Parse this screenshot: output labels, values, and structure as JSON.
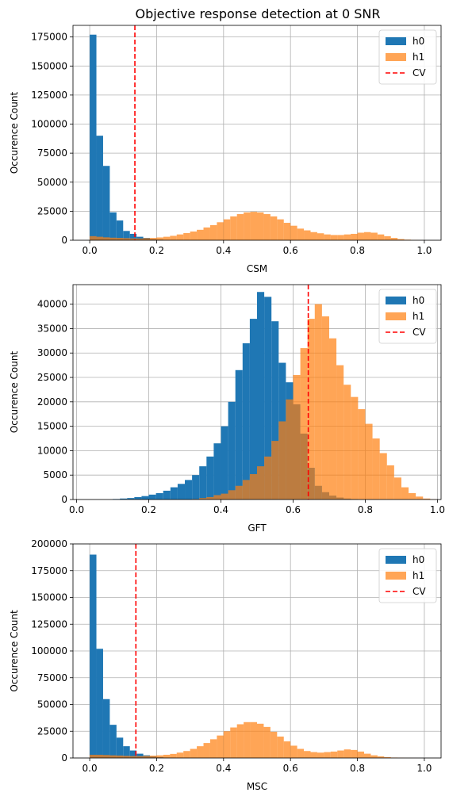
{
  "figure": {
    "title": "Objective response detection at 0 SNR"
  },
  "colors": {
    "h0": "#1f77b4",
    "h1": "#ff7f0e",
    "cv": "#ff0000",
    "grid": "#b0b0b0",
    "axis": "#000000"
  },
  "chart_data": [
    {
      "type": "bar",
      "xlabel": "CSM",
      "ylabel": "Occurence Count",
      "xlim": [
        -0.05,
        1.05
      ],
      "ylim": [
        0,
        185000
      ],
      "xticks": [
        "0.0",
        "0.2",
        "0.4",
        "0.6",
        "0.8",
        "1.0"
      ],
      "yticks": [
        "0",
        "25000",
        "50000",
        "75000",
        "100000",
        "125000",
        "150000",
        "175000"
      ],
      "ytick_values": [
        0,
        25000,
        50000,
        75000,
        100000,
        125000,
        150000,
        175000
      ],
      "grid": true,
      "legend_position": "top-right",
      "legend": [
        "h0",
        "h1",
        "CV"
      ],
      "cv": 0.135,
      "bin_start": 0.0,
      "bin_width": 0.02,
      "series": [
        {
          "name": "h0",
          "values": [
            177000,
            90000,
            64000,
            24000,
            17000,
            8000,
            5500,
            3000,
            2000,
            1000,
            600,
            300,
            100,
            0,
            0,
            0,
            0,
            0,
            0,
            0,
            0,
            0,
            0,
            0,
            0,
            0,
            0,
            0,
            0,
            0,
            0,
            0,
            0,
            0,
            0,
            0,
            0,
            0,
            0,
            0,
            0,
            0,
            0,
            0,
            0,
            0,
            0,
            0,
            0,
            0
          ]
        },
        {
          "name": "h1",
          "values": [
            3500,
            3000,
            2500,
            2200,
            2000,
            1800,
            1600,
            1500,
            1800,
            2000,
            2400,
            3000,
            3800,
            5000,
            6200,
            7500,
            9000,
            11000,
            13000,
            15500,
            18000,
            20500,
            22500,
            24000,
            24500,
            24000,
            22500,
            20500,
            18000,
            15000,
            12500,
            10000,
            8500,
            7000,
            6000,
            5000,
            4500,
            4500,
            5000,
            5500,
            6500,
            7000,
            6500,
            5000,
            3500,
            2000,
            1000,
            500,
            200,
            50
          ]
        }
      ]
    },
    {
      "type": "bar",
      "xlabel": "GFT",
      "ylabel": "Occurence Count",
      "xlim": [
        -0.01,
        1.01
      ],
      "ylim": [
        0,
        44000
      ],
      "xticks": [
        "0.0",
        "0.2",
        "0.4",
        "0.6",
        "0.8",
        "1.0"
      ],
      "yticks": [
        "0",
        "5000",
        "10000",
        "15000",
        "20000",
        "25000",
        "30000",
        "35000",
        "40000"
      ],
      "ytick_values": [
        0,
        5000,
        10000,
        15000,
        20000,
        25000,
        30000,
        35000,
        40000
      ],
      "grid": true,
      "legend_position": "top-right",
      "legend": [
        "h0",
        "h1",
        "CV"
      ],
      "cv": 0.642,
      "bin_start": 0.0,
      "bin_width": 0.02,
      "series": [
        {
          "name": "h0",
          "values": [
            0,
            0,
            0,
            0,
            0,
            100,
            200,
            300,
            500,
            700,
            1000,
            1300,
            1800,
            2500,
            3200,
            4000,
            5000,
            6800,
            8800,
            11500,
            15000,
            20000,
            26500,
            32000,
            37000,
            42500,
            41500,
            36500,
            28000,
            24000,
            19500,
            13500,
            6500,
            2800,
            1500,
            800,
            400,
            200,
            100,
            0,
            0,
            0,
            0,
            0,
            0,
            0,
            0,
            0,
            0,
            0
          ]
        },
        {
          "name": "h1",
          "values": [
            0,
            0,
            0,
            0,
            0,
            0,
            0,
            0,
            0,
            0,
            0,
            0,
            0,
            0,
            0,
            0,
            100,
            300,
            500,
            900,
            1200,
            1900,
            2800,
            4000,
            5200,
            6800,
            8800,
            12000,
            16000,
            20500,
            25500,
            31000,
            37000,
            40000,
            37500,
            33000,
            27500,
            23500,
            21000,
            18500,
            15500,
            12500,
            9500,
            7000,
            4500,
            2500,
            1300,
            600,
            200,
            50
          ]
        }
      ]
    },
    {
      "type": "bar",
      "xlabel": "MSC",
      "ylabel": "Occurence Count",
      "xlim": [
        -0.05,
        1.05
      ],
      "ylim": [
        0,
        200000
      ],
      "xticks": [
        "0.0",
        "0.2",
        "0.4",
        "0.6",
        "0.8",
        "1.0"
      ],
      "yticks": [
        "0",
        "25000",
        "50000",
        "75000",
        "100000",
        "125000",
        "150000",
        "175000",
        "200000"
      ],
      "ytick_values": [
        0,
        25000,
        50000,
        75000,
        100000,
        125000,
        150000,
        175000,
        200000
      ],
      "grid": true,
      "legend_position": "top-right",
      "legend": [
        "h0",
        "h1",
        "CV"
      ],
      "cv": 0.138,
      "bin_start": 0.0,
      "bin_width": 0.02,
      "series": [
        {
          "name": "h0",
          "values": [
            190000,
            102000,
            55000,
            31000,
            19000,
            11000,
            7000,
            4000,
            2500,
            1500,
            800,
            400,
            150,
            0,
            0,
            0,
            0,
            0,
            0,
            0,
            0,
            0,
            0,
            0,
            0,
            0,
            0,
            0,
            0,
            0,
            0,
            0,
            0,
            0,
            0,
            0,
            0,
            0,
            0,
            0,
            0,
            0,
            0,
            0,
            0,
            0,
            0,
            0,
            0,
            0
          ]
        },
        {
          "name": "h1",
          "values": [
            3000,
            3000,
            2800,
            2500,
            2300,
            2000,
            1800,
            1700,
            2000,
            2200,
            2500,
            3000,
            3800,
            5000,
            6500,
            8500,
            11000,
            14000,
            17500,
            21000,
            25000,
            28500,
            31500,
            33500,
            33500,
            32000,
            29000,
            24500,
            20000,
            15500,
            11500,
            8500,
            6500,
            5500,
            5000,
            5500,
            6000,
            7000,
            8000,
            7500,
            6000,
            4000,
            2500,
            1500,
            800,
            400,
            200,
            100,
            50,
            0
          ]
        }
      ]
    }
  ]
}
